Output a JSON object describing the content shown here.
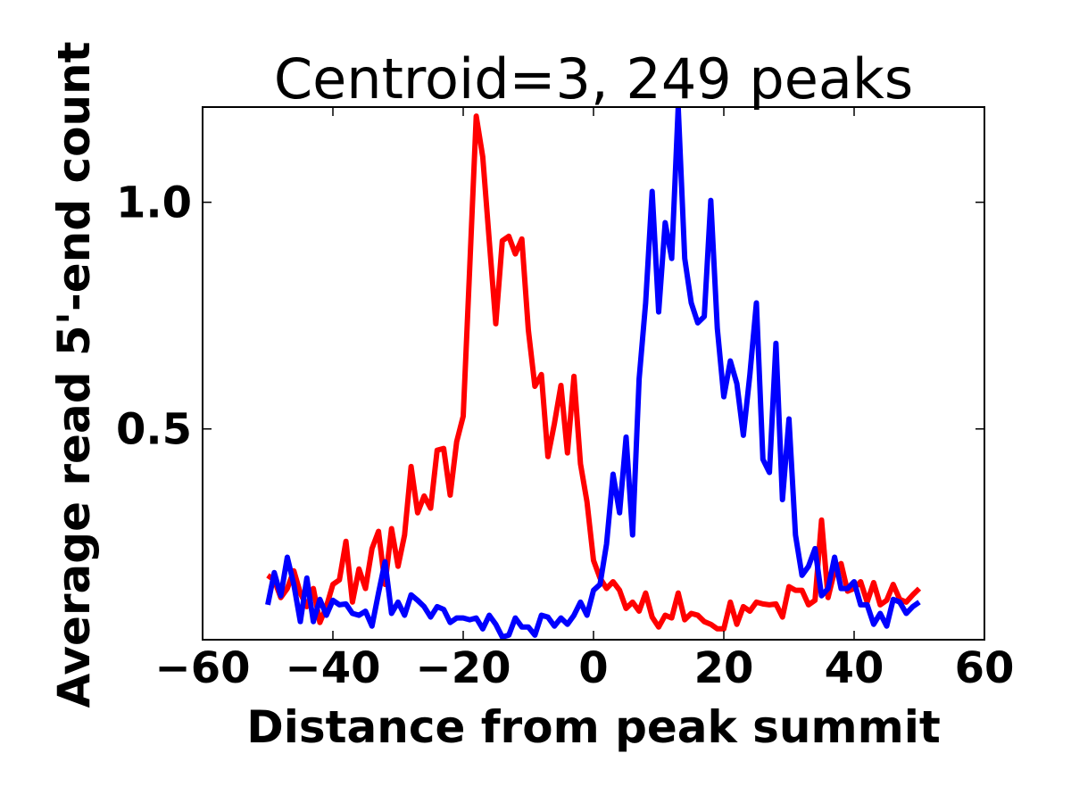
{
  "chart_data": {
    "type": "line",
    "title": "Centroid=3, 249 peaks",
    "xlabel": "Distance from peak summit",
    "ylabel": "Average read 5'-end count",
    "x": [
      -50,
      -49,
      -48,
      -47,
      -46,
      -45,
      -44,
      -43,
      -42,
      -41,
      -40,
      -39,
      -38,
      -37,
      -36,
      -35,
      -34,
      -33,
      -32,
      -31,
      -30,
      -29,
      -28,
      -27,
      -26,
      -25,
      -24,
      -23,
      -22,
      -21,
      -20,
      -19,
      -18,
      -17,
      -16,
      -15,
      -14,
      -13,
      -12,
      -11,
      -10,
      -9,
      -8,
      -7,
      -6,
      -5,
      -4,
      -3,
      -2,
      -1,
      0,
      1,
      2,
      3,
      4,
      5,
      6,
      7,
      8,
      9,
      10,
      11,
      12,
      13,
      14,
      15,
      16,
      17,
      18,
      19,
      20,
      21,
      22,
      23,
      24,
      25,
      26,
      27,
      28,
      29,
      30,
      31,
      32,
      33,
      34,
      35,
      36,
      37,
      38,
      39,
      40,
      41,
      42,
      43,
      44,
      45,
      46,
      47,
      48,
      49,
      50
    ],
    "series": [
      {
        "color": "#ff0000",
        "values": [
          0.177,
          0.167,
          0.128,
          0.148,
          0.187,
          0.138,
          0.108,
          0.148,
          0.073,
          0.108,
          0.157,
          0.167,
          0.252,
          0.118,
          0.191,
          0.148,
          0.236,
          0.274,
          0.157,
          0.28,
          0.197,
          0.266,
          0.417,
          0.315,
          0.352,
          0.325,
          0.453,
          0.457,
          0.354,
          0.472,
          0.528,
          0.856,
          1.19,
          1.1,
          0.915,
          0.732,
          0.915,
          0.925,
          0.886,
          0.919,
          0.718,
          0.594,
          0.62,
          0.439,
          0.512,
          0.596,
          0.447,
          0.616,
          0.423,
          0.339,
          0.21,
          0.171,
          0.148,
          0.163,
          0.144,
          0.104,
          0.118,
          0.098,
          0.138,
          0.085,
          0.063,
          0.089,
          0.083,
          0.138,
          0.079,
          0.093,
          0.089,
          0.075,
          0.069,
          0.059,
          0.059,
          0.118,
          0.069,
          0.108,
          0.098,
          0.118,
          0.114,
          0.112,
          0.114,
          0.085,
          0.152,
          0.144,
          0.144,
          0.112,
          0.122,
          0.299,
          0.128,
          0.187,
          0.203,
          0.142,
          0.148,
          0.163,
          0.118,
          0.161,
          0.112,
          0.122,
          0.157,
          0.124,
          0.118,
          0.134,
          0.148
        ]
      },
      {
        "color": "#0000ff",
        "values": [
          0.112,
          0.183,
          0.132,
          0.217,
          0.157,
          0.075,
          0.171,
          0.075,
          0.124,
          0.089,
          0.122,
          0.112,
          0.114,
          0.093,
          0.089,
          0.098,
          0.065,
          0.138,
          0.207,
          0.093,
          0.118,
          0.089,
          0.134,
          0.122,
          0.108,
          0.085,
          0.108,
          0.102,
          0.073,
          0.083,
          0.083,
          0.079,
          0.083,
          0.059,
          0.089,
          0.069,
          0.041,
          0.045,
          0.083,
          0.063,
          0.063,
          0.045,
          0.089,
          0.085,
          0.065,
          0.083,
          0.069,
          0.089,
          0.118,
          0.089,
          0.144,
          0.157,
          0.246,
          0.4,
          0.315,
          0.482,
          0.266,
          0.61,
          0.778,
          1.024,
          0.758,
          0.955,
          0.876,
          1.21,
          0.876,
          0.778,
          0.734,
          0.748,
          1.004,
          0.722,
          0.571,
          0.65,
          0.6,
          0.486,
          0.62,
          0.778,
          0.433,
          0.404,
          0.689,
          0.344,
          0.522,
          0.266,
          0.177,
          0.197,
          0.236,
          0.132,
          0.148,
          0.217,
          0.148,
          0.148,
          0.163,
          0.112,
          0.112,
          0.069,
          0.093,
          0.065,
          0.124,
          0.118,
          0.093,
          0.108,
          0.118
        ]
      }
    ],
    "xlim": [
      -60,
      60
    ],
    "xticks": [
      {
        "value": -60,
        "label": "−60"
      },
      {
        "value": -40,
        "label": "−40"
      },
      {
        "value": -20,
        "label": "−20"
      },
      0,
      20,
      40,
      60
    ],
    "ylim": [
      0.035,
      1.21
    ],
    "yticks": [
      0.5,
      {
        "value": 1,
        "label": "1.0"
      }
    ]
  }
}
